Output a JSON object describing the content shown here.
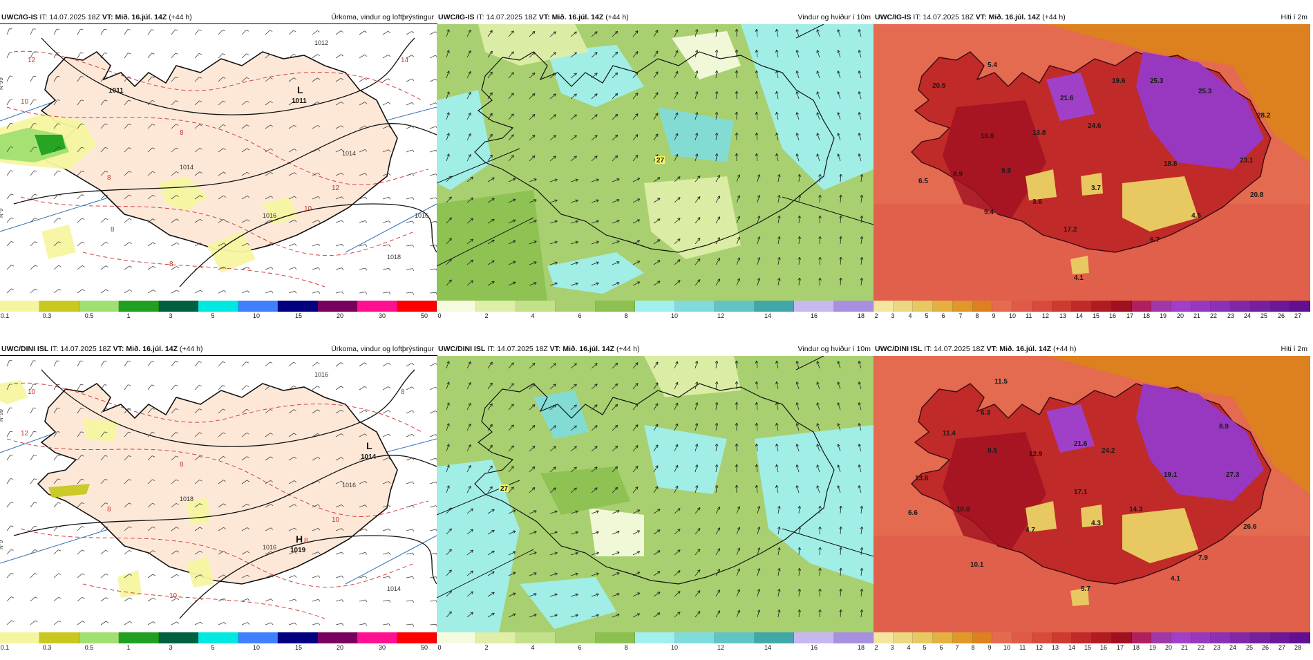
{
  "rows": [
    {
      "model": "UWC/IG-IS",
      "it_label": "IT:",
      "it_value": "14.07.2025 18Z",
      "vt_label": "VT:",
      "vt_value": "Mið. 16.júl. 14Z",
      "lead": "(+44 h)"
    },
    {
      "model": "UWC/DINI ISL",
      "it_label": "IT:",
      "it_value": "14.07.2025 18Z",
      "vt_label": "VT:",
      "vt_value": "Mið. 16.júl. 14Z",
      "lead": "(+44 h)"
    }
  ],
  "panel_titles": {
    "precip": "Úrkoma, vindur og loftþrýstingur",
    "wind": "Vindur og hviður í 10m",
    "temp": "Hiti í 2m"
  },
  "scales": {
    "precip": {
      "ticks": [
        "0.1",
        "0.3",
        "0.5",
        "1",
        "3",
        "5",
        "10",
        "15",
        "20",
        "30",
        "50"
      ],
      "colors": [
        "#f5f5a0",
        "#c8c820",
        "#a0e070",
        "#20a020",
        "#006040",
        "#00e8e0",
        "#4080ff",
        "#000080",
        "#7a0060",
        "#ff1090",
        "#ff0000"
      ]
    },
    "wind": {
      "ticks": [
        "0",
        "2",
        "4",
        "6",
        "8",
        "10",
        "12",
        "14",
        "16",
        "18"
      ],
      "colors": [
        "#f6fbe0",
        "#dfeea8",
        "#c3e08a",
        "#a8d070",
        "#8cc050",
        "#a0f0f0",
        "#80dcdc",
        "#60c4c4",
        "#40a8a8",
        "#c8b8f0",
        "#a890e0"
      ]
    },
    "temp": {
      "ticks_top": [
        "2",
        "3",
        "4",
        "5",
        "6",
        "7",
        "8",
        "9",
        "10",
        "11",
        "12",
        "13",
        "14",
        "15",
        "16",
        "17",
        "18",
        "19",
        "20",
        "21",
        "22",
        "23",
        "24",
        "25",
        "26",
        "27"
      ],
      "ticks_bottom": [
        "2",
        "3",
        "4",
        "5",
        "6",
        "7",
        "8",
        "9",
        "10",
        "11",
        "12",
        "13",
        "14",
        "15",
        "16",
        "17",
        "18",
        "19",
        "20",
        "21",
        "22",
        "23",
        "24",
        "25",
        "26",
        "27",
        "28"
      ],
      "colors": [
        "#f3e6a0",
        "#ecd880",
        "#e8c860",
        "#e4b040",
        "#e09828",
        "#dc8020",
        "#e46a50",
        "#e05a48",
        "#d84a3c",
        "#cc3a30",
        "#c02a28",
        "#b01c22",
        "#a01020",
        "#b02060",
        "#a038a8",
        "#a040c8",
        "#9838c0",
        "#8c30b8",
        "#8028a8",
        "#7420a0",
        "#6c1898",
        "#601090"
      ]
    }
  },
  "map_labels": {
    "top_precip": {
      "lows": [
        {
          "letter": "L",
          "value": "1011"
        },
        {
          "letter": "",
          "value": "1011"
        }
      ],
      "isobars": [
        "1012",
        "1014",
        "1014",
        "1016",
        "1018",
        "1016"
      ],
      "red": [
        "12",
        "10",
        "8",
        "8",
        "8",
        "14",
        "12",
        "10",
        "8"
      ]
    },
    "bottom_precip": {
      "lows": [
        {
          "letter": "L",
          "value": "1014"
        }
      ],
      "highs": [
        {
          "letter": "H",
          "value": "1019"
        }
      ],
      "isobars": [
        "1016",
        "1018",
        "1016",
        "1016",
        "1014"
      ],
      "red": [
        "10",
        "12",
        "8",
        "8",
        "10",
        "8",
        "10",
        "8"
      ]
    },
    "top_wind": {
      "gust": "27"
    },
    "bottom_wind": {
      "gust": "27"
    },
    "top_temp": [
      "5.4",
      "20.5",
      "19.6",
      "25.3",
      "25.3",
      "21.6",
      "24.6",
      "28.2",
      "16.0",
      "13.8",
      "18.8",
      "23.1",
      "6.5",
      "8.9",
      "9.9",
      "3.7",
      "20.8",
      "3.6",
      "9.4",
      "4.5",
      "17.2",
      "6.7",
      "4.1"
    ],
    "bottom_temp": [
      "11.5",
      "6.3",
      "11.4",
      "9.5",
      "12.9",
      "21.6",
      "24.2",
      "8.9",
      "19.1",
      "13.6",
      "17.1",
      "27.3",
      "10.0",
      "14.3",
      "6.6",
      "4.3",
      "4.7",
      "26.6",
      "7.9",
      "10.1",
      "4.1",
      "5.7"
    ]
  }
}
